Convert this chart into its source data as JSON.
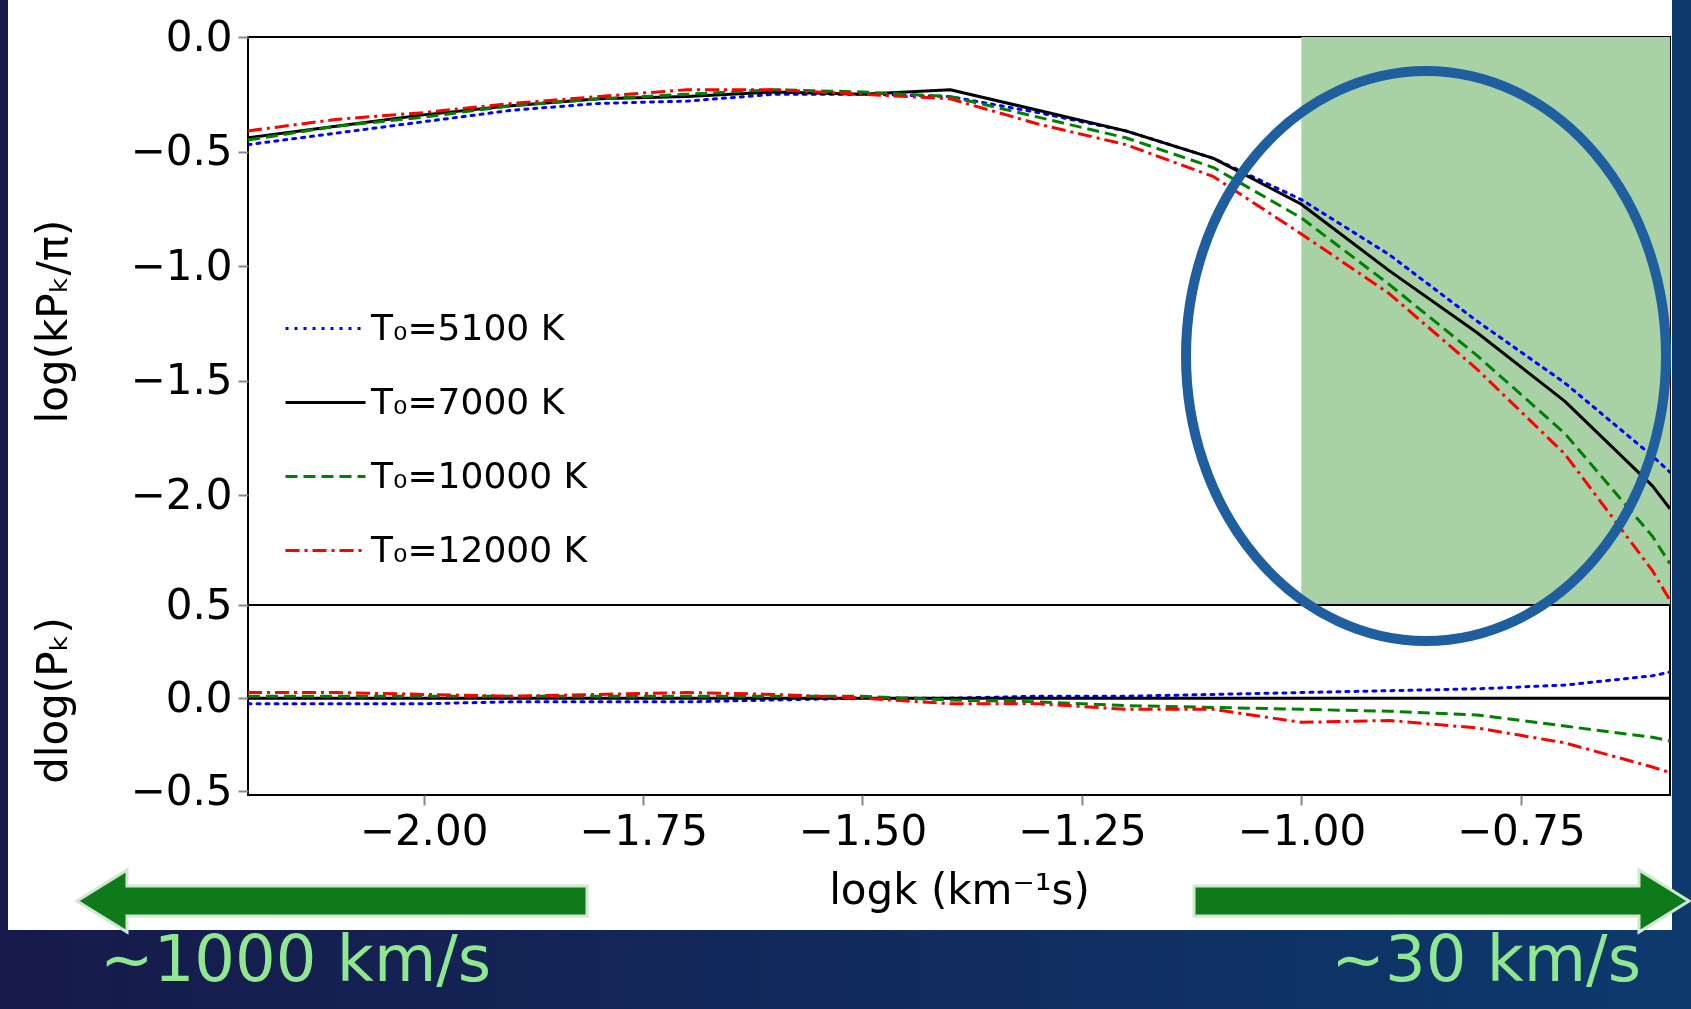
{
  "chart_data": [
    {
      "type": "line",
      "ylabel": "log(kPₖ/π)",
      "x": [
        -2.2,
        -2.1,
        -2.0,
        -1.9,
        -1.8,
        -1.7,
        -1.6,
        -1.5,
        -1.4,
        -1.3,
        -1.2,
        -1.1,
        -1.0,
        -0.9,
        -0.8,
        -0.7,
        -0.6,
        -0.58
      ],
      "xlim": [
        -2.2,
        -0.58
      ],
      "ylim": [
        -2.48,
        0
      ],
      "yticks": [
        {
          "value": 0,
          "label": "0.0"
        },
        {
          "value": -0.5,
          "label": "−0.5"
        },
        {
          "value": -1,
          "label": "−1.0"
        },
        {
          "value": -1.5,
          "label": "−1.5"
        },
        {
          "value": -2,
          "label": "−2.0"
        }
      ],
      "tick_labels": "y",
      "legend": "bottom left",
      "bands": [
        {
          "axis": "x",
          "from": -1.0,
          "to": -0.58,
          "color": "#a8d2a5"
        }
      ],
      "series": [
        {
          "name": "T₀=5100 K",
          "color": "#0000ff",
          "line_style": "dotted",
          "values": [
            -0.47,
            -0.42,
            -0.37,
            -0.32,
            -0.29,
            -0.28,
            -0.25,
            -0.25,
            -0.26,
            -0.33,
            -0.41,
            -0.53,
            -0.71,
            -0.95,
            -1.24,
            -1.51,
            -1.83,
            -1.9
          ]
        },
        {
          "name": "T₀=7000 K",
          "color": "#000000",
          "line_style": "solid",
          "values": [
            -0.44,
            -0.39,
            -0.34,
            -0.3,
            -0.27,
            -0.26,
            -0.24,
            -0.25,
            -0.23,
            -0.32,
            -0.41,
            -0.53,
            -0.73,
            -1.02,
            -1.29,
            -1.59,
            -1.96,
            -2.06
          ]
        },
        {
          "name": "T₀=10000 K",
          "color": "#008000",
          "line_style": "dashed",
          "values": [
            -0.45,
            -0.39,
            -0.35,
            -0.3,
            -0.27,
            -0.25,
            -0.23,
            -0.24,
            -0.26,
            -0.35,
            -0.44,
            -0.57,
            -0.79,
            -1.08,
            -1.39,
            -1.73,
            -2.18,
            -2.3
          ]
        },
        {
          "name": "T₀=12000 K",
          "color": "#ff0000",
          "line_style": "dashdot",
          "values": [
            -0.41,
            -0.36,
            -0.33,
            -0.29,
            -0.26,
            -0.23,
            -0.23,
            -0.25,
            -0.27,
            -0.38,
            -0.47,
            -0.61,
            -0.86,
            -1.12,
            -1.45,
            -1.82,
            -2.33,
            -2.46
          ]
        }
      ]
    },
    {
      "type": "line",
      "xlabel": "logk (km⁻¹s)",
      "ylabel": "dlog(Pₖ)",
      "x": [
        -2.2,
        -2.1,
        -2.0,
        -1.9,
        -1.8,
        -1.7,
        -1.6,
        -1.5,
        -1.4,
        -1.3,
        -1.2,
        -1.1,
        -1.0,
        -0.9,
        -0.8,
        -0.7,
        -0.6,
        -0.58
      ],
      "xlim": [
        -2.2,
        -0.58
      ],
      "ylim": [
        -0.52,
        0.5
      ],
      "xticks": [
        {
          "value": -2,
          "label": "−2.00"
        },
        {
          "value": -1.75,
          "label": "−1.75"
        },
        {
          "value": -1.5,
          "label": "−1.50"
        },
        {
          "value": -1.25,
          "label": "−1.25"
        },
        {
          "value": -1,
          "label": "−1.00"
        },
        {
          "value": -0.75,
          "label": "−0.75"
        }
      ],
      "yticks": [
        {
          "value": 0.5,
          "label": "0.5"
        },
        {
          "value": 0,
          "label": "0.0"
        },
        {
          "value": -0.5,
          "label": "−0.5"
        }
      ],
      "annotations": [
        "~1000 km/s",
        "~30 km/s"
      ],
      "series": [
        {
          "color": "#0000ff",
          "line_style": "dotted",
          "values": [
            -0.03,
            -0.03,
            -0.03,
            -0.02,
            -0.02,
            -0.02,
            -0.01,
            0.0,
            0.0,
            0.01,
            0.01,
            0.02,
            0.03,
            0.04,
            0.05,
            0.07,
            0.12,
            0.14
          ]
        },
        {
          "color": "#000000",
          "line_style": "solid",
          "values": [
            0,
            0,
            0,
            0,
            0,
            0,
            0,
            0,
            0,
            0,
            0,
            0,
            0,
            0,
            0,
            0,
            0,
            0
          ]
        },
        {
          "color": "#008000",
          "line_style": "dashed",
          "values": [
            0.01,
            0.01,
            0.01,
            0.01,
            0.01,
            0.01,
            0.01,
            0.01,
            -0.01,
            -0.02,
            -0.04,
            -0.05,
            -0.06,
            -0.07,
            -0.09,
            -0.15,
            -0.21,
            -0.23
          ]
        },
        {
          "color": "#ff0000",
          "line_style": "dashdot",
          "values": [
            0.03,
            0.03,
            0.02,
            0.01,
            0.02,
            0.03,
            0.02,
            0.0,
            -0.03,
            -0.03,
            -0.06,
            -0.06,
            -0.13,
            -0.12,
            -0.16,
            -0.24,
            -0.37,
            -0.4
          ]
        }
      ]
    }
  ]
}
